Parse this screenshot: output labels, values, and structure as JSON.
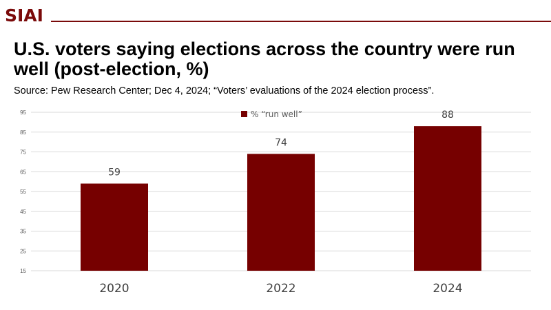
{
  "header": {
    "logo": "SIAI"
  },
  "colors": {
    "brand": "#7a0a0a",
    "bar": "#760000",
    "grid": "#d9d9d9"
  },
  "chart_data": {
    "type": "bar",
    "title": "U.S. voters saying elections across the country were run well (post-election, %)",
    "subtitle": "Source: Pew Research Center; Dec 4, 2024; “Voters’ evaluations of the 2024 election process”.",
    "categories": [
      "2020",
      "2022",
      "2024"
    ],
    "series": [
      {
        "name": "% “run well”",
        "values": [
          59,
          74,
          88
        ]
      }
    ],
    "data_labels": [
      "59",
      "74",
      "88"
    ],
    "ylim": [
      15,
      95
    ],
    "yticks": [
      "15",
      "25",
      "35",
      "45",
      "55",
      "65",
      "75",
      "85",
      "95"
    ],
    "grid": true,
    "legend": "top-center"
  }
}
